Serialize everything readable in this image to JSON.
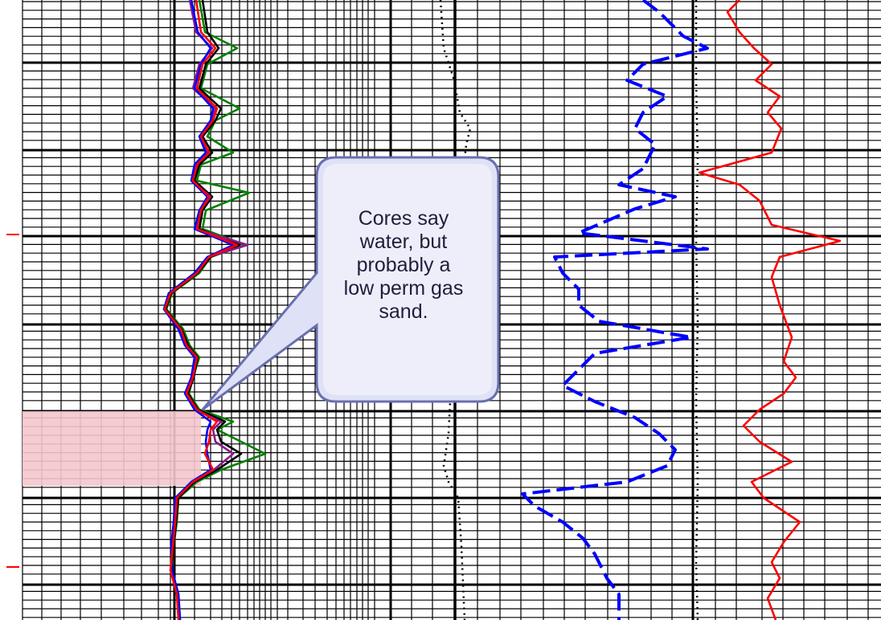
{
  "callout": {
    "lines": [
      "Cores say",
      "water, but",
      "probably a",
      "low perm gas",
      "sand."
    ]
  },
  "colors": {
    "grid": "#000000",
    "highlight": "#f4c6cc",
    "callout_fill": "#dfe2f6",
    "callout_border": "#6a6fb0",
    "curve_red": "#ff0000",
    "curve_blue": "#0000ff",
    "curve_green": "#008000",
    "curve_purple": "#8b1a8b",
    "curve_black": "#000000"
  },
  "chart_data": {
    "type": "line",
    "title": "",
    "note": "",
    "depth_markers": [
      "",
      ""
    ],
    "series": [
      {
        "color": "red",
        "track": 1,
        "points": [
          [
            0,
            244
          ],
          [
            40,
            250
          ],
          [
            60,
            268
          ],
          [
            80,
            252
          ],
          [
            110,
            245
          ],
          [
            135,
            270
          ],
          [
            150,
            265
          ],
          [
            170,
            250
          ],
          [
            190,
            260
          ],
          [
            205,
            245
          ],
          [
            225,
            240
          ],
          [
            245,
            260
          ],
          [
            262,
            250
          ],
          [
            285,
            245
          ],
          [
            305,
            295
          ],
          [
            320,
            260
          ],
          [
            340,
            245
          ],
          [
            365,
            212
          ],
          [
            385,
            205
          ],
          [
            410,
            225
          ],
          [
            430,
            232
          ],
          [
            445,
            245
          ],
          [
            470,
            240
          ],
          [
            490,
            232
          ],
          [
            510,
            245
          ],
          [
            525,
            270
          ],
          [
            535,
            262
          ],
          [
            550,
            260
          ],
          [
            565,
            255
          ],
          [
            585,
            265
          ],
          [
            600,
            240
          ],
          [
            620,
            220
          ],
          [
            650,
            218
          ],
          [
            680,
            215
          ],
          [
            710,
            212
          ],
          [
            740,
            220
          ],
          [
            772,
            222
          ]
        ]
      },
      {
        "color": "green",
        "track": 1,
        "points": [
          [
            0,
            248
          ],
          [
            40,
            255
          ],
          [
            60,
            295
          ],
          [
            80,
            258
          ],
          [
            110,
            250
          ],
          [
            135,
            298
          ],
          [
            150,
            268
          ],
          [
            170,
            258
          ],
          [
            190,
            290
          ],
          [
            205,
            250
          ],
          [
            225,
            245
          ],
          [
            240,
            310
          ],
          [
            262,
            256
          ],
          [
            285,
            252
          ],
          [
            305,
            305
          ],
          [
            320,
            262
          ],
          [
            340,
            248
          ],
          [
            365,
            214
          ],
          [
            385,
            207
          ],
          [
            410,
            228
          ],
          [
            430,
            236
          ],
          [
            445,
            248
          ],
          [
            470,
            240
          ],
          [
            490,
            235
          ],
          [
            510,
            248
          ],
          [
            525,
            290
          ],
          [
            535,
            270
          ],
          [
            550,
            300
          ],
          [
            565,
            330
          ],
          [
            585,
            275
          ],
          [
            600,
            245
          ],
          [
            620,
            222
          ],
          [
            650,
            220
          ],
          [
            680,
            216
          ],
          [
            710,
            214
          ],
          [
            740,
            222
          ],
          [
            772,
            224
          ]
        ]
      },
      {
        "color": "blue",
        "track": 1,
        "points": [
          [
            0,
            238
          ],
          [
            40,
            246
          ],
          [
            60,
            262
          ],
          [
            80,
            250
          ],
          [
            110,
            242
          ],
          [
            135,
            265
          ],
          [
            150,
            262
          ],
          [
            170,
            248
          ],
          [
            190,
            256
          ],
          [
            205,
            242
          ],
          [
            225,
            238
          ],
          [
            245,
            258
          ],
          [
            262,
            248
          ],
          [
            285,
            242
          ],
          [
            305,
            290
          ],
          [
            320,
            258
          ],
          [
            340,
            242
          ],
          [
            365,
            210
          ],
          [
            385,
            204
          ],
          [
            410,
            222
          ],
          [
            430,
            230
          ],
          [
            445,
            242
          ],
          [
            470,
            238
          ],
          [
            490,
            230
          ],
          [
            510,
            242
          ],
          [
            525,
            262
          ],
          [
            535,
            258
          ],
          [
            550,
            256
          ],
          [
            565,
            258
          ],
          [
            585,
            262
          ],
          [
            600,
            238
          ],
          [
            620,
            218
          ],
          [
            650,
            216
          ],
          [
            680,
            213
          ],
          [
            710,
            214
          ],
          [
            740,
            222
          ],
          [
            772,
            224
          ]
        ]
      },
      {
        "color": "black",
        "track": 1,
        "points": [
          [
            0,
            252
          ],
          [
            40,
            258
          ],
          [
            60,
            272
          ],
          [
            80,
            256
          ],
          [
            110,
            248
          ],
          [
            135,
            275
          ],
          [
            150,
            268
          ],
          [
            170,
            252
          ],
          [
            190,
            264
          ],
          [
            205,
            248
          ],
          [
            225,
            242
          ],
          [
            245,
            264
          ],
          [
            262,
            252
          ],
          [
            285,
            248
          ],
          [
            305,
            298
          ],
          [
            320,
            262
          ],
          [
            340,
            246
          ],
          [
            365,
            213
          ],
          [
            385,
            206
          ],
          [
            410,
            226
          ],
          [
            430,
            234
          ],
          [
            445,
            246
          ],
          [
            470,
            241
          ],
          [
            490,
            234
          ],
          [
            510,
            246
          ],
          [
            525,
            280
          ],
          [
            535,
            270
          ],
          [
            550,
            275
          ],
          [
            565,
            300
          ],
          [
            585,
            270
          ],
          [
            600,
            242
          ],
          [
            620,
            222
          ],
          [
            650,
            219
          ],
          [
            680,
            216
          ],
          [
            710,
            213
          ],
          [
            740,
            221
          ],
          [
            772,
            223
          ]
        ]
      },
      {
        "color": "purple",
        "track": 1,
        "points": [
          [
            0,
            236
          ],
          [
            40,
            244
          ],
          [
            60,
            264
          ],
          [
            80,
            248
          ],
          [
            110,
            240
          ],
          [
            135,
            268
          ],
          [
            150,
            263
          ],
          [
            170,
            248
          ],
          [
            190,
            258
          ],
          [
            205,
            243
          ],
          [
            225,
            238
          ],
          [
            245,
            262
          ],
          [
            262,
            249
          ],
          [
            285,
            243
          ],
          [
            305,
            308
          ],
          [
            320,
            259
          ],
          [
            340,
            243
          ],
          [
            365,
            210
          ],
          [
            385,
            204
          ],
          [
            410,
            223
          ],
          [
            430,
            231
          ],
          [
            445,
            243
          ],
          [
            470,
            239
          ],
          [
            490,
            231
          ],
          [
            510,
            243
          ],
          [
            525,
            275
          ],
          [
            535,
            265
          ],
          [
            550,
            268
          ],
          [
            565,
            290
          ],
          [
            585,
            266
          ],
          [
            600,
            240
          ],
          [
            620,
            219
          ],
          [
            650,
            217
          ],
          [
            680,
            214
          ],
          [
            710,
            213
          ],
          [
            740,
            221
          ],
          [
            772,
            223
          ]
        ]
      },
      {
        "color": "black",
        "track": 2,
        "style": "dotted",
        "points": [
          [
            0,
            548
          ],
          [
            60,
            552
          ],
          [
            100,
            565
          ],
          [
            140,
            572
          ],
          [
            160,
            585
          ],
          [
            180,
            580
          ],
          [
            250,
            572
          ],
          [
            320,
            566
          ],
          [
            380,
            560
          ],
          [
            440,
            556
          ],
          [
            500,
            560
          ],
          [
            540,
            558
          ],
          [
            560,
            555
          ],
          [
            580,
            552
          ],
          [
            600,
            558
          ],
          [
            620,
            570
          ],
          [
            680,
            574
          ],
          [
            772,
            578
          ]
        ]
      },
      {
        "color": "blue",
        "track": 3,
        "style": "dashed",
        "points": [
          [
            0,
            800
          ],
          [
            15,
            820
          ],
          [
            45,
            850
          ],
          [
            60,
            880
          ],
          [
            80,
            800
          ],
          [
            100,
            780
          ],
          [
            120,
            830
          ],
          [
            140,
            800
          ],
          [
            160,
            790
          ],
          [
            180,
            815
          ],
          [
            210,
            800
          ],
          [
            230,
            770
          ],
          [
            245,
            840
          ],
          [
            260,
            790
          ],
          [
            290,
            720
          ],
          [
            310,
            880
          ],
          [
            320,
            690
          ],
          [
            340,
            700
          ],
          [
            360,
            720
          ],
          [
            380,
            720
          ],
          [
            400,
            745
          ],
          [
            420,
            860
          ],
          [
            440,
            740
          ],
          [
            460,
            720
          ],
          [
            480,
            700
          ],
          [
            500,
            740
          ],
          [
            520,
            790
          ],
          [
            540,
            820
          ],
          [
            560,
            840
          ],
          [
            580,
            830
          ],
          [
            600,
            780
          ],
          [
            615,
            650
          ],
          [
            630,
            665
          ],
          [
            650,
            700
          ],
          [
            670,
            725
          ],
          [
            690,
            740
          ],
          [
            720,
            755
          ],
          [
            740,
            770
          ],
          [
            772,
            770
          ]
        ]
      },
      {
        "color": "black",
        "track": 3,
        "style": "dotted",
        "points": [
          [
            0,
            866
          ],
          [
            100,
            866
          ],
          [
            200,
            868
          ],
          [
            300,
            866
          ],
          [
            400,
            868
          ],
          [
            500,
            866
          ],
          [
            600,
            868
          ],
          [
            700,
            866
          ],
          [
            772,
            868
          ]
        ]
      },
      {
        "color": "red",
        "track": 4,
        "points": [
          [
            0,
            920
          ],
          [
            15,
            905
          ],
          [
            40,
            920
          ],
          [
            60,
            938
          ],
          [
            80,
            960
          ],
          [
            100,
            940
          ],
          [
            120,
            970
          ],
          [
            140,
            955
          ],
          [
            160,
            972
          ],
          [
            190,
            960
          ],
          [
            215,
            870
          ],
          [
            230,
            920
          ],
          [
            250,
            945
          ],
          [
            280,
            960
          ],
          [
            300,
            1045
          ],
          [
            320,
            970
          ],
          [
            345,
            960
          ],
          [
            380,
            970
          ],
          [
            420,
            985
          ],
          [
            450,
            975
          ],
          [
            470,
            990
          ],
          [
            490,
            975
          ],
          [
            510,
            945
          ],
          [
            530,
            925
          ],
          [
            550,
            945
          ],
          [
            575,
            985
          ],
          [
            600,
            935
          ],
          [
            620,
            950
          ],
          [
            650,
            995
          ],
          [
            675,
            975
          ],
          [
            700,
            960
          ],
          [
            720,
            970
          ],
          [
            745,
            955
          ],
          [
            772,
            965
          ]
        ]
      }
    ]
  }
}
